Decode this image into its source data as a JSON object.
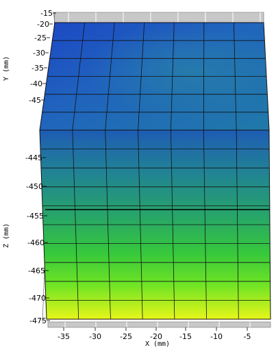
{
  "chart_data": {
    "type": "heatmap",
    "title": "",
    "xlabel": "X (mm)",
    "ylabel_top": "Y (mm)",
    "ylabel_side": "Z (mm)",
    "x_ticks": [
      "-35",
      "-30",
      "-25",
      "-20",
      "-15",
      "-10",
      "-5"
    ],
    "y_ticks": [
      "-15",
      "-20",
      "-25",
      "-30",
      "-35",
      "-40",
      "-45"
    ],
    "z_ticks": [
      "-445",
      "-450",
      "-455",
      "-460",
      "-465",
      "-470",
      "-475"
    ],
    "x_range": [
      -37,
      -3
    ],
    "y_range": [
      -50,
      -15
    ],
    "z_range": [
      -475,
      -441
    ],
    "colormap": [
      "#1f4fc0",
      "#1f6bb4",
      "#22928c",
      "#2bb85a",
      "#47d82c",
      "#8fe81e",
      "#e6f21a"
    ],
    "surface": "color varies from blue at top face to yellow-green at bottom of front face; meshed grid",
    "grid": true
  }
}
